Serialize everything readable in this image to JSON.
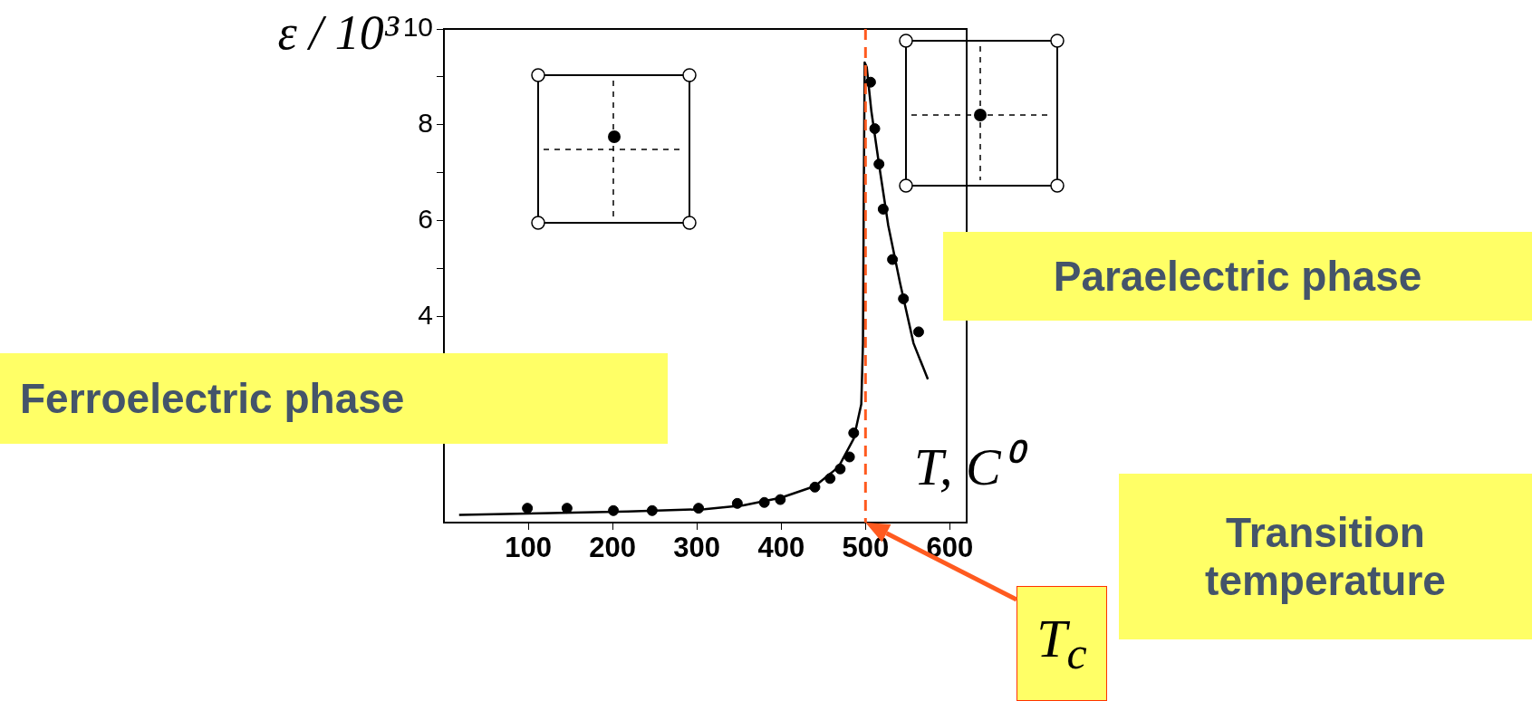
{
  "chart_data": {
    "type": "scatter",
    "xlabel": "T, C⁰",
    "ylabel": "ε / 10³",
    "xlim": [
      0,
      620
    ],
    "xticks": [
      100,
      200,
      300,
      400,
      500,
      600
    ],
    "ylim": [
      -0.3,
      10
    ],
    "yticks": [
      4,
      6,
      8,
      10,
      {
        "value": 5,
        "label": null
      },
      {
        "value": 7,
        "label": null
      },
      {
        "value": 9,
        "label": null
      }
    ],
    "grid": false,
    "legend": false,
    "marker": "circle",
    "series": [
      {
        "color": "#000000",
        "x": [
          99,
          146,
          201,
          247,
          302,
          348,
          380,
          399,
          440,
          458,
          470,
          481,
          486,
          506,
          511,
          516,
          521,
          532,
          545,
          563
        ],
        "values": [
          0,
          0,
          -0.05,
          -0.05,
          0,
          0.1,
          0.12,
          0.18,
          0.44,
          0.62,
          0.82,
          1.07,
          1.57,
          8.89,
          7.92,
          7.18,
          6.24,
          5.19,
          4.37,
          3.68
        ]
      },
      {
        "type": "line",
        "color": "#000000",
        "marker": "none",
        "x": [
          18,
          127,
          218,
          309,
          355,
          400,
          440,
          468,
          486,
          495,
          497,
          498,
          499,
          501.5,
          507,
          516,
          527,
          541,
          557,
          574
        ],
        "values": [
          -0.14,
          -0.1,
          -0.07,
          -0.02,
          0.06,
          0.22,
          0.46,
          0.86,
          1.45,
          2.17,
          3.44,
          6.6,
          9.3,
          9.2,
          8.28,
          7.18,
          5.9,
          4.7,
          3.44,
          2.69
        ]
      }
    ],
    "ref_lines": [
      {
        "axis": "x",
        "value": 500,
        "color": "#ff5a1f",
        "line_style": "dashed"
      }
    ],
    "annotations": [
      "Ferroelectric phase",
      "Paraelectric phase",
      "Transition temperature",
      "T$_{c}$"
    ]
  }
}
